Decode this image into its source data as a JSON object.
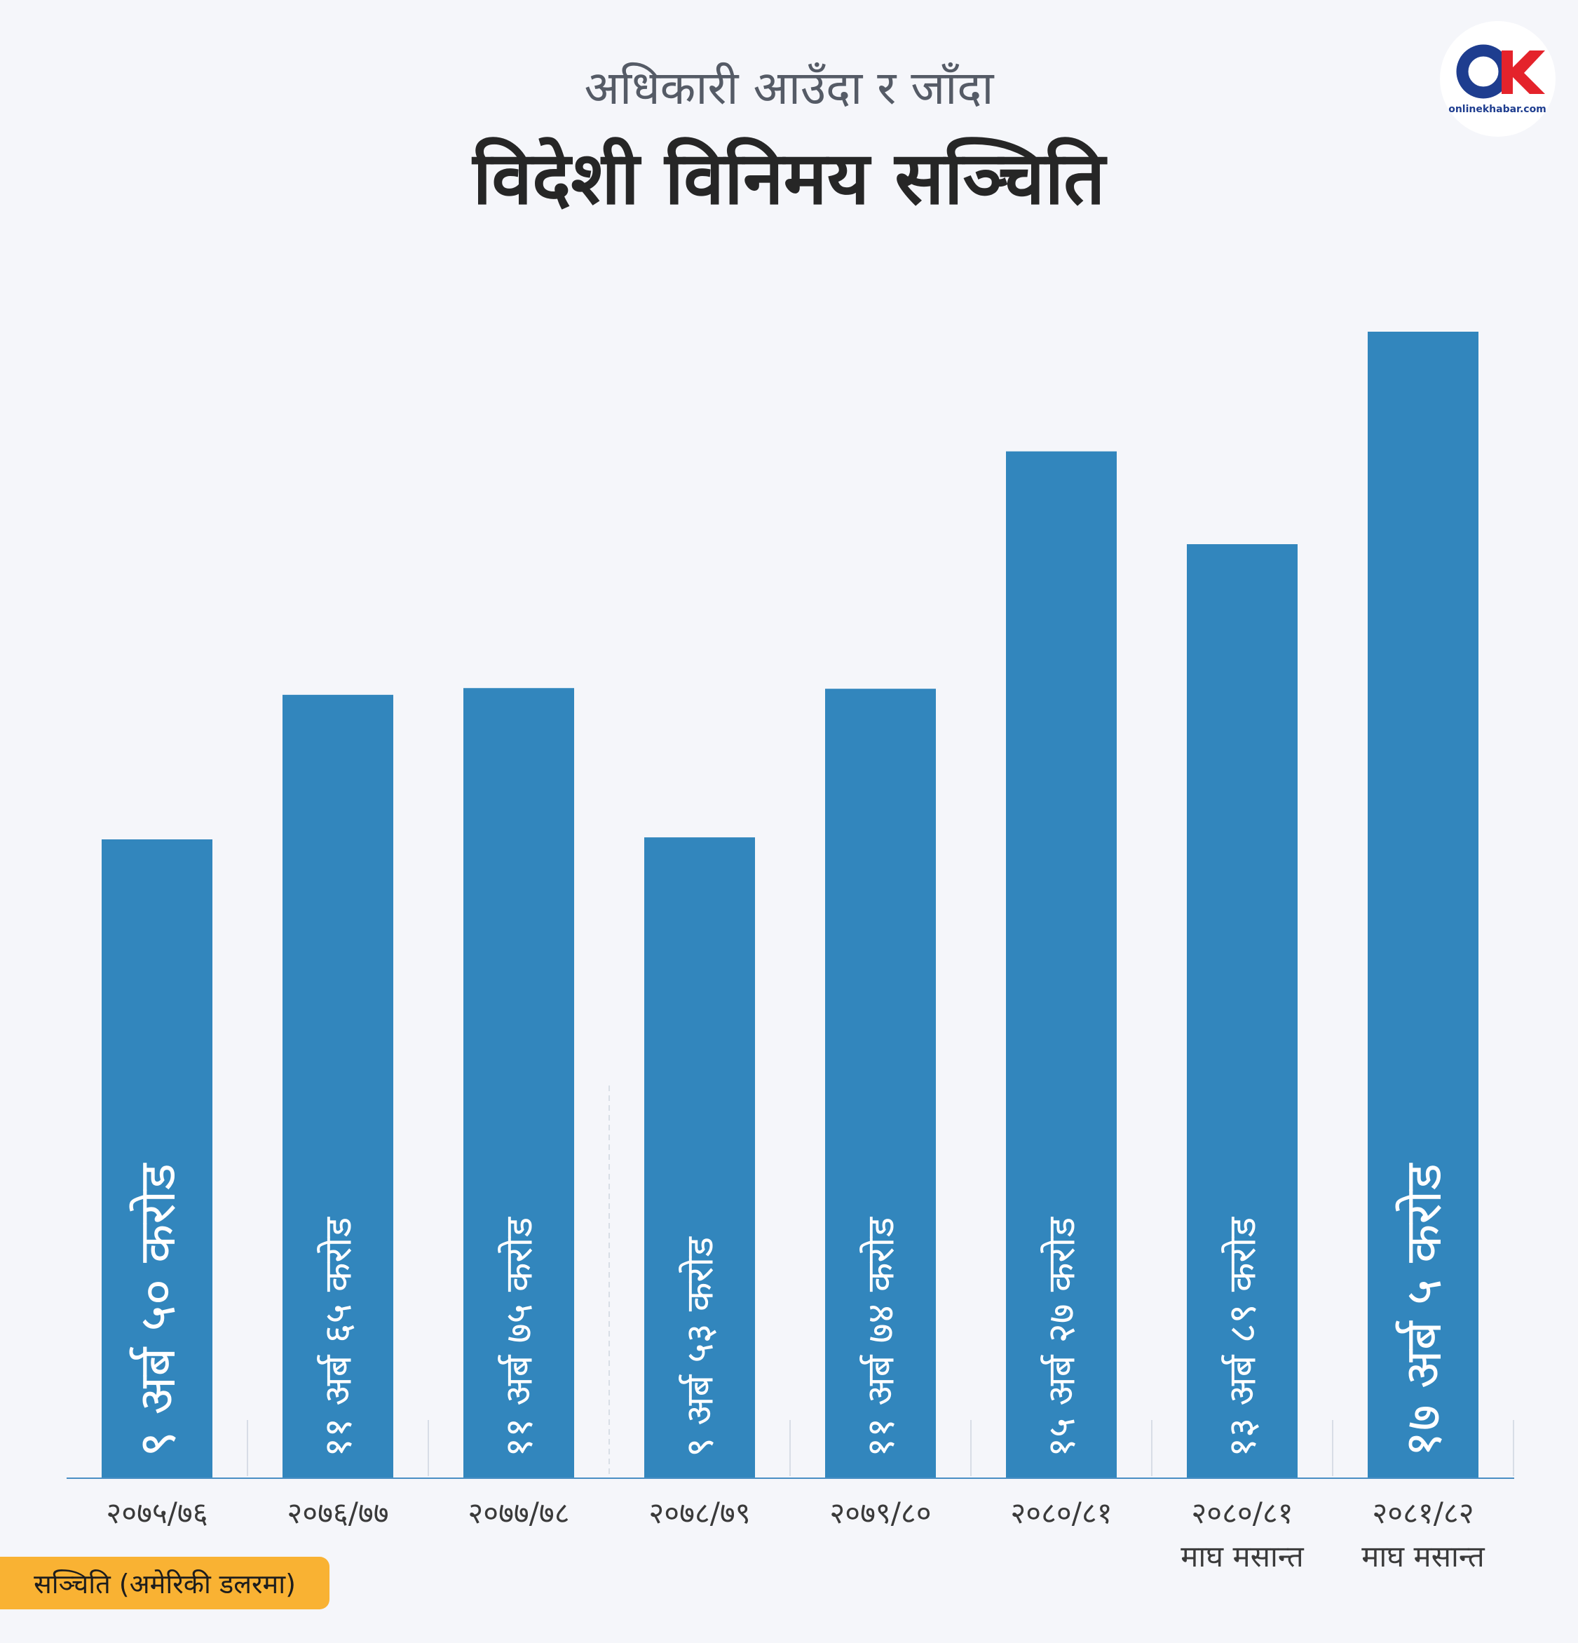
{
  "header": {
    "subtitle": "अधिकारी आउँदा र जाँदा",
    "title": "विदेशी विनिमय सञ्चिति"
  },
  "brand": {
    "logo_text": "onlinekhabar.com",
    "logo_mark": "OK",
    "colors": {
      "o_ring": "#1e3d8f",
      "k_mark": "#e4232b"
    }
  },
  "legend": {
    "label": "सञ्चिति (अमेरिकी डलरमा)",
    "color": "#f9b233"
  },
  "colors": {
    "bar": "#3286bd",
    "bar_label": "#ffffff",
    "axis": "#4a8fc4",
    "tick_text": "#3a3a3a"
  },
  "chart_data": {
    "type": "bar",
    "title": "विदेशी विनिमय सञ्चिति",
    "subtitle": "अधिकारी आउँदा र जाँदा",
    "categories": [
      [
        "२०७५/७६"
      ],
      [
        "२०७६/७७"
      ],
      [
        "२०७७/७८"
      ],
      [
        "२०७८/७९"
      ],
      [
        "२०७९/८०"
      ],
      [
        "२०८०/८१"
      ],
      [
        "२०८०/८१",
        "माघ मसान्त"
      ],
      [
        "२०८१/८२",
        "माघ मसान्त"
      ]
    ],
    "values": [
      9.5,
      11.65,
      11.75,
      9.53,
      11.74,
      15.27,
      13.89,
      17.05
    ],
    "value_labels": [
      "९ अर्ब ५० करोड",
      "११ अर्ब ६५ करोड",
      "११ अर्ब ७५ करोड",
      "९ अर्ब ५३ करोड",
      "११ अर्ब ७४ करोड",
      "१५ अर्ब २७ करोड",
      "१३ अर्ब ८९ करोड",
      "१७ अर्ब ५ करोड"
    ],
    "highlight": [
      true,
      false,
      false,
      false,
      false,
      false,
      false,
      true
    ],
    "ylim": [
      0,
      17.05
    ],
    "grid": false,
    "legend_position": "bottom-left"
  }
}
